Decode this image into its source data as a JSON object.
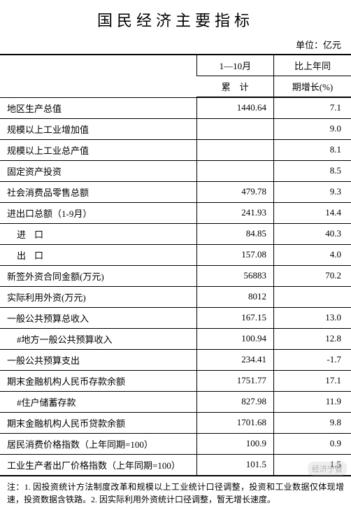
{
  "title": "国民经济主要指标",
  "unit": "单位：亿元",
  "header": {
    "period": "1—10月",
    "compare": "比上年同",
    "cumulative": "累　计",
    "growth": "期增长(%)"
  },
  "rows": [
    {
      "label": "地区生产总值",
      "value": "1440.64",
      "growth": "7.1",
      "indent": 0
    },
    {
      "label": "规模以上工业增加值",
      "value": "",
      "growth": "9.0",
      "indent": 0
    },
    {
      "label": "规模以上工业总产值",
      "value": "",
      "growth": "8.1",
      "indent": 0
    },
    {
      "label": "固定资产投资",
      "value": "",
      "growth": "8.5",
      "indent": 0
    },
    {
      "label": "社会消费品零售总额",
      "value": "479.78",
      "growth": "9.3",
      "indent": 0
    },
    {
      "label": "进出口总额（1-9月）",
      "value": "241.93",
      "growth": "14.4",
      "indent": 0
    },
    {
      "label": "进口",
      "value": "84.85",
      "growth": "40.3",
      "indent": 2
    },
    {
      "label": "出口",
      "value": "157.08",
      "growth": "4.0",
      "indent": 2
    },
    {
      "label": "新签外资合同金额(万元)",
      "value": "56883",
      "growth": "70.2",
      "indent": 0
    },
    {
      "label": "实际利用外资(万元)",
      "value": "8012",
      "growth": "",
      "indent": 0
    },
    {
      "label": "一般公共预算总收入",
      "value": "167.15",
      "growth": "13.0",
      "indent": 0
    },
    {
      "label": "#地方一般公共预算收入",
      "value": "100.94",
      "growth": "12.8",
      "indent": 1
    },
    {
      "label": "一般公共预算支出",
      "value": "234.41",
      "growth": "-1.7",
      "indent": 0
    },
    {
      "label": "期末金融机构人民币存款余额",
      "value": "1751.77",
      "growth": "17.1",
      "indent": 0
    },
    {
      "label": "#住户储蓄存款",
      "value": "827.98",
      "growth": "11.9",
      "indent": 1
    },
    {
      "label": "期末金融机构人民币贷款余额",
      "value": "1701.68",
      "growth": "9.8",
      "indent": 0
    },
    {
      "label": "居民消费价格指数（上年同期=100）",
      "value": "100.9",
      "growth": "0.9",
      "indent": 0
    },
    {
      "label": "工业生产者出厂价格指数（上年同期=100）",
      "value": "101.5",
      "growth": "1.5",
      "indent": 0
    }
  ],
  "footnote": "注：1. 因投资统计方法制度改革和规模以上工业统计口径调整，投资和工业数据仅体现增速，投资数据含铁路。2. 因实际利用外资统计口径调整，暂无增长速度。",
  "watermark": "经济宁管"
}
